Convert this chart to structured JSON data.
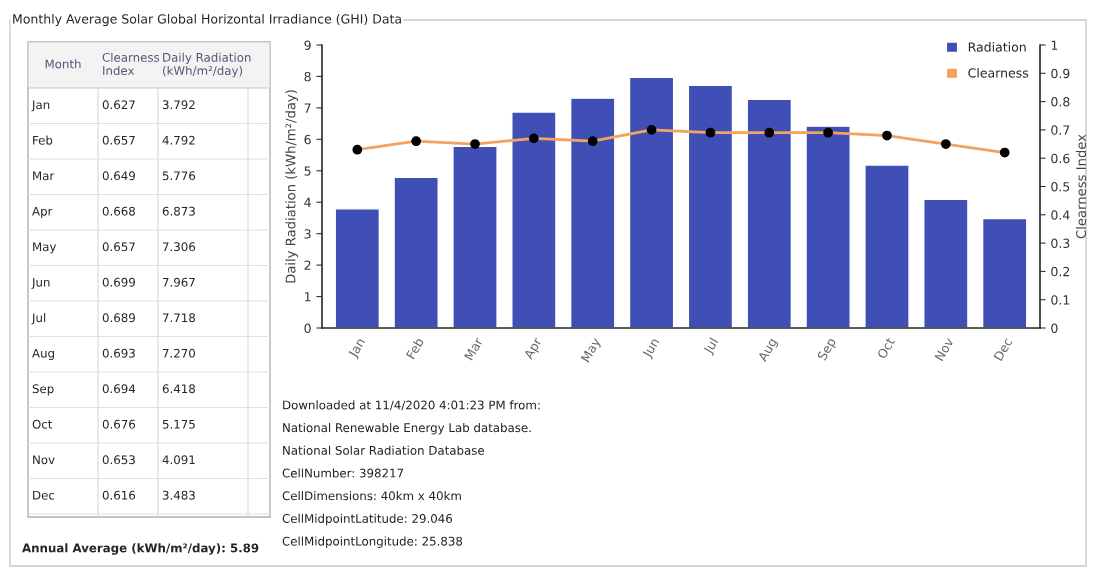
{
  "chart_data": [
    {
      "type": "other",
      "title": "Monthly Average Solar Global Horizontal Irradiance (GHI) Data",
      "xlabel": "Month",
      "categories": [
        "Jan",
        "Feb",
        "Mar",
        "Apr",
        "May",
        "Jun",
        "Jul",
        "Aug",
        "Sep",
        "Oct",
        "Nov",
        "Dec"
      ],
      "series": [
        {
          "name": "Clearness Index",
          "values": [
            0.627,
            0.657,
            0.649,
            0.668,
            0.657,
            0.699,
            0.689,
            0.693,
            0.694,
            0.676,
            0.653,
            0.616
          ],
          "value_labels": [
            "0.627",
            "0.657",
            "0.649",
            "0.668",
            "0.657",
            "0.699",
            "0.689",
            "0.693",
            "0.694",
            "0.676",
            "0.653",
            "0.616"
          ]
        },
        {
          "name": "Daily Radiation (kWh/m²/day)",
          "values": [
            3.792,
            4.792,
            5.776,
            6.873,
            7.306,
            7.967,
            7.718,
            7.27,
            6.418,
            5.175,
            4.091,
            3.483
          ],
          "value_labels": [
            "3.792",
            "4.792",
            "5.776",
            "6.873",
            "7.306",
            "7.967",
            "7.718",
            "7.270",
            "6.418",
            "5.175",
            "4.091",
            "3.483"
          ]
        }
      ],
      "annotations": [
        "Annual Average (kWh/m²/day): 5.89"
      ]
    },
    {
      "type": "bar",
      "categories": [
        "Jan",
        "Feb",
        "Mar",
        "Apr",
        "May",
        "Jun",
        "Jul",
        "Aug",
        "Sep",
        "Oct",
        "Nov",
        "Dec"
      ],
      "series": [
        {
          "name": "Radiation",
          "type": "bar",
          "color": "#3f4fb5",
          "values": [
            3.79,
            4.79,
            5.78,
            6.87,
            7.31,
            7.97,
            7.72,
            7.27,
            6.42,
            5.18,
            4.09,
            3.48
          ]
        },
        {
          "name": "Clearness",
          "type": "line",
          "axis": "y2",
          "color": "#f4a25e",
          "marker": "circle",
          "values": [
            0.63,
            0.66,
            0.65,
            0.67,
            0.66,
            0.7,
            0.69,
            0.69,
            0.69,
            0.68,
            0.65,
            0.62
          ]
        }
      ],
      "ylabel": "Daily Radiation (kWh/m²/day)",
      "y2label": "Clearness Index",
      "ylim": [
        0,
        9
      ],
      "yticks": [
        0,
        1,
        2,
        3,
        4,
        5,
        6,
        7,
        8,
        9
      ],
      "y2lim": [
        0,
        1
      ],
      "y2ticks": [
        0,
        0.1,
        0.2,
        0.3,
        0.4,
        0.5,
        0.6,
        0.7,
        0.8,
        0.9,
        1
      ],
      "grid": false,
      "legend": "top right",
      "annotations": [
        "Downloaded at 11/4/2020 4:01:23 PM from:",
        "National Renewable Energy Lab database.",
        "National Solar Radiation Database",
        "CellNumber: 398217",
        "CellDimensions: 40km x 40km",
        "CellMidpointLatitude: 29.046",
        "CellMidpointLongitude: 25.838"
      ]
    }
  ]
}
